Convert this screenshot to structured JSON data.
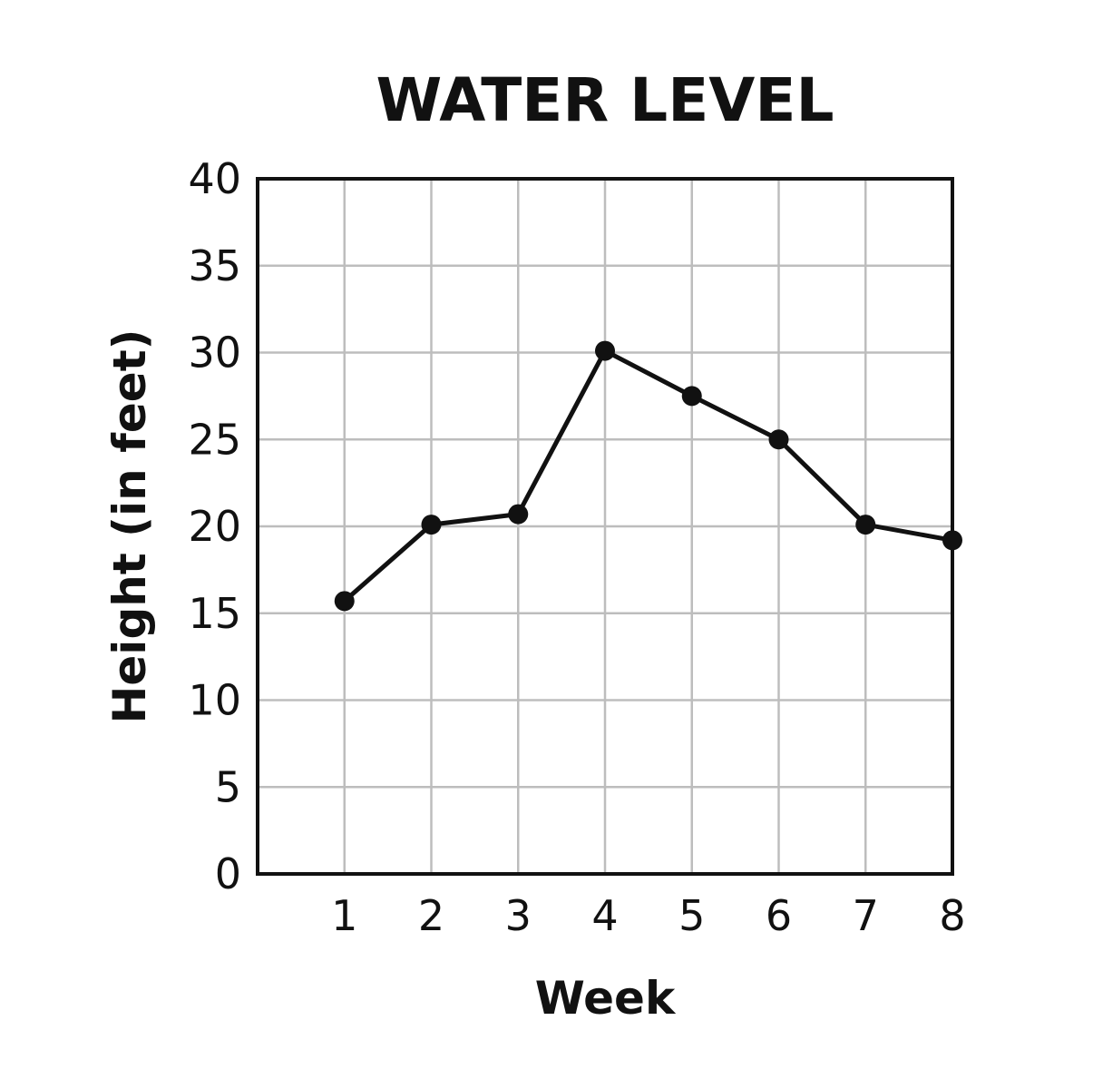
{
  "chart_data": {
    "type": "line",
    "title": "WATER LEVEL",
    "xlabel": "Week",
    "ylabel": "Height (in feet)",
    "x": [
      1,
      2,
      3,
      4,
      5,
      6,
      7,
      8
    ],
    "series": [
      {
        "values": [
          15.7,
          20.1,
          20.7,
          30.1,
          27.5,
          25.0,
          20.1,
          19.2
        ]
      }
    ],
    "x_ticks": [
      "1",
      "2",
      "3",
      "4",
      "5",
      "6",
      "7",
      "8"
    ],
    "y_ticks": [
      "0",
      "5",
      "10",
      "15",
      "20",
      "25",
      "30",
      "35",
      "40"
    ],
    "xlim": [
      0,
      8
    ],
    "ylim": [
      0,
      40
    ],
    "grid": true,
    "line_color": "#111111",
    "grid_color": "#bdbdbd"
  }
}
